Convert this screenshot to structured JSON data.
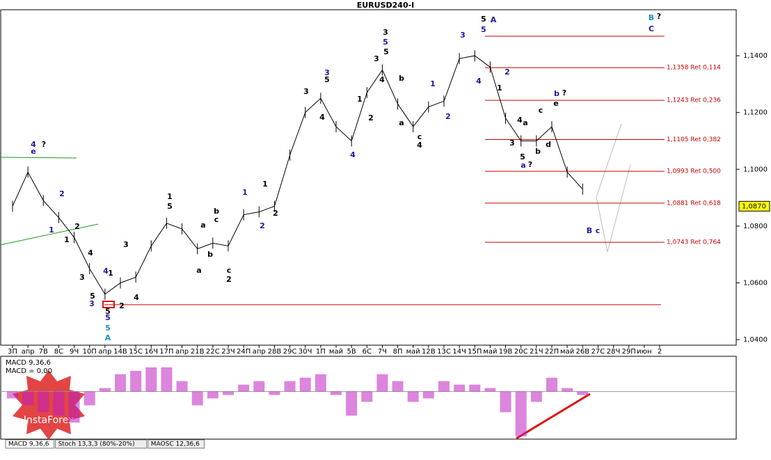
{
  "chart_data": {
    "type": "line",
    "title": "EURUSD240-I",
    "categories": [
      "3П",
      "апр",
      "7В",
      "8С",
      "9Ч",
      "10П",
      "апр",
      "14В",
      "15С",
      "16Ч",
      "17П",
      "апр",
      "21В",
      "22С",
      "23Ч",
      "24П",
      "апр",
      "28В",
      "29С",
      "30Ч",
      "1П",
      "май",
      "5В",
      "6С",
      "7Ч",
      "8П",
      "май",
      "12В",
      "13С",
      "14Ч",
      "15П",
      "май",
      "19В",
      "20С",
      "21Ч",
      "22П",
      "май",
      "26В",
      "27С",
      "28Ч",
      "29П",
      "июн",
      "2"
    ],
    "values": [
      1.087,
      1.099,
      1.089,
      1.083,
      1.076,
      1.065,
      1.056,
      1.06,
      1.062,
      1.073,
      1.081,
      1.079,
      1.072,
      1.074,
      1.073,
      1.084,
      1.085,
      1.087,
      1.105,
      1.12,
      1.125,
      1.115,
      1.11,
      1.127,
      1.135,
      1.123,
      1.115,
      1.122,
      1.124,
      1.139,
      1.14,
      1.136,
      1.118,
      1.11,
      1.11,
      1.115,
      1.099,
      1.093,
      null,
      null,
      null,
      null,
      null
    ],
    "color": "#000000",
    "ylim": [
      1.0383,
      1.1562
    ],
    "yticks": [
      {
        "value": 1.14,
        "label": "1,1400"
      },
      {
        "value": 1.12,
        "label": "1,1200"
      },
      {
        "value": 1.1,
        "label": "1,1000"
      },
      {
        "value": 1.08,
        "label": "1,0800"
      },
      {
        "value": 1.06,
        "label": "1,0600"
      },
      {
        "value": 1.04,
        "label": "1,0400"
      }
    ],
    "current_price": {
      "value": 1.087,
      "label": "1,0870"
    },
    "levels": [
      {
        "value": 1.1358,
        "label": "1,1358 Ret 0,114"
      },
      {
        "value": 1.1243,
        "label": "1,1243 Ret 0,236"
      },
      {
        "value": 1.1105,
        "label": "1,1105 Ret 0,382"
      },
      {
        "value": 1.0993,
        "label": "1,0993 Ret 0,500"
      },
      {
        "value": 1.0881,
        "label": "1,0881 Ret 0,618"
      },
      {
        "value": 1.0743,
        "label": "1,0743 Ret 0,764"
      }
    ],
    "level_color": "#cc0000",
    "lines": [
      1.1469,
      1.0523
    ],
    "annotations": [
      {
        "text": "4",
        "color": "#1a1aa0"
      },
      {
        "text": "?",
        "color": "#000"
      },
      {
        "text": "e",
        "color": "#1a1aa0"
      },
      {
        "text": "2",
        "color": "#1a1aa0"
      },
      {
        "text": "1",
        "color": "#1a1aa0"
      },
      {
        "text": "2",
        "color": "#000"
      },
      {
        "text": "1",
        "color": "#000"
      },
      {
        "text": "4",
        "color": "#000"
      },
      {
        "text": "3",
        "color": "#000"
      },
      {
        "text": "5",
        "color": "#000"
      },
      {
        "text": "3",
        "color": "#1a1aa0"
      },
      {
        "text": "4",
        "color": "#1a1aa0"
      },
      {
        "text": "1",
        "color": "#000"
      },
      {
        "text": "5",
        "color": "#000"
      },
      {
        "text": "5",
        "color": "#1a1aa0"
      },
      {
        "text": "5",
        "color": "#1e90c8"
      },
      {
        "text": "A",
        "color": "#1e90c8"
      },
      {
        "text": "2",
        "color": "#000"
      },
      {
        "text": "4",
        "color": "#000"
      },
      {
        "text": "3",
        "color": "#000"
      },
      {
        "text": "1",
        "color": "#000"
      },
      {
        "text": "5",
        "color": "#000"
      },
      {
        "text": "a",
        "color": "#000"
      },
      {
        "text": "c",
        "color": "#000"
      },
      {
        "text": "b",
        "color": "#000"
      },
      {
        "text": "b",
        "color": "#000"
      },
      {
        "text": "a",
        "color": "#000"
      },
      {
        "text": "c",
        "color": "#000"
      },
      {
        "text": "2",
        "color": "#000"
      },
      {
        "text": "1",
        "color": "#1a1aa0"
      },
      {
        "text": "2",
        "color": "#1a1aa0"
      },
      {
        "text": "1",
        "color": "#000"
      },
      {
        "text": "2",
        "color": "#000"
      },
      {
        "text": "3",
        "color": "#1a1aa0"
      },
      {
        "text": "5",
        "color": "#000"
      },
      {
        "text": "4",
        "color": "#000"
      },
      {
        "text": "3",
        "color": "#000"
      },
      {
        "text": "4",
        "color": "#1a1aa0"
      },
      {
        "text": "1",
        "color": "#000"
      },
      {
        "text": "2",
        "color": "#000"
      },
      {
        "text": "3",
        "color": "#000"
      },
      {
        "text": "5",
        "color": "#1a1aa0"
      },
      {
        "text": "5",
        "color": "#000"
      },
      {
        "text": "3",
        "color": "#000"
      },
      {
        "text": "4",
        "color": "#000"
      },
      {
        "text": "b",
        "color": "#000"
      },
      {
        "text": "a",
        "color": "#000"
      },
      {
        "text": "c",
        "color": "#000"
      },
      {
        "text": "4",
        "color": "#000"
      },
      {
        "text": "1",
        "color": "#1a1aa0"
      },
      {
        "text": "2",
        "color": "#1a1aa0"
      },
      {
        "text": "3",
        "color": "#1a1aa0"
      },
      {
        "text": "5",
        "color": "#000"
      },
      {
        "text": "A",
        "color": "#1a1aa0"
      },
      {
        "text": "5",
        "color": "#1a1aa0"
      },
      {
        "text": "4",
        "color": "#1a1aa0"
      },
      {
        "text": "2",
        "color": "#1a1aa0"
      },
      {
        "text": "1",
        "color": "#000"
      },
      {
        "text": "4",
        "color": "#000"
      },
      {
        "text": "a",
        "color": "#000"
      },
      {
        "text": "3",
        "color": "#000"
      },
      {
        "text": "c",
        "color": "#000"
      },
      {
        "text": "e",
        "color": "#000"
      },
      {
        "text": "b",
        "color": "#1a1aa0"
      },
      {
        "text": "?",
        "color": "#000"
      },
      {
        "text": "d",
        "color": "#000"
      },
      {
        "text": "b",
        "color": "#000"
      },
      {
        "text": "5",
        "color": "#000"
      },
      {
        "text": "a",
        "color": "#1a1aa0"
      },
      {
        "text": "?",
        "color": "#000"
      },
      {
        "text": "B",
        "color": "#1a1aa0"
      },
      {
        "text": "c",
        "color": "#1a1aa0"
      },
      {
        "text": "B",
        "color": "#1e90c8"
      },
      {
        "text": "?",
        "color": "#000"
      },
      {
        "text": "C",
        "color": "#1a1aa0"
      }
    ],
    "indicator": {
      "title": "MACD 9,36,6",
      "value_text": "MACD = 0,00",
      "color": "#c020c0",
      "values": [
        -10,
        -20,
        -30,
        -35,
        -45,
        -20,
        5,
        25,
        30,
        35,
        35,
        15,
        -20,
        -10,
        -5,
        10,
        15,
        -5,
        15,
        20,
        25,
        -5,
        -35,
        -15,
        25,
        15,
        -15,
        -10,
        15,
        10,
        10,
        5,
        -30,
        -65,
        -15,
        20,
        5,
        -5,
        null,
        null,
        null,
        null,
        null
      ],
      "ylim": [
        -70,
        50
      ]
    },
    "tabs": [
      "MACD 9,36,6",
      "Stoch 13,3,3 (80%-20%)",
      "MAOSC 12,36,6"
    ],
    "brand": "InstaForex"
  }
}
